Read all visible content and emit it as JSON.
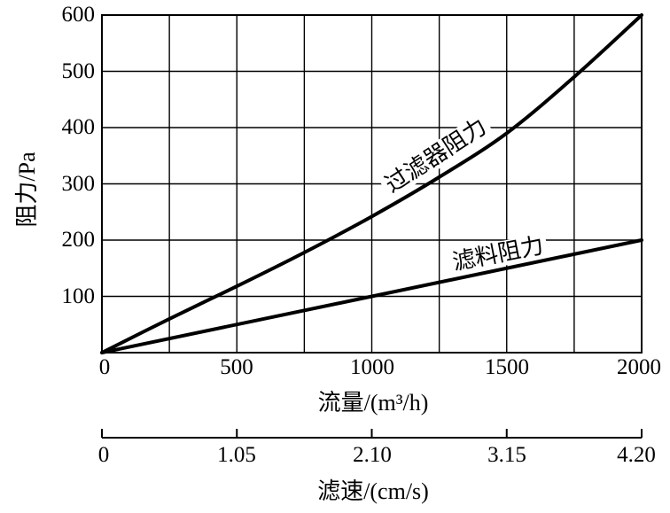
{
  "figure": {
    "background": "#ffffff",
    "line_color": "#000000"
  },
  "y_axis": {
    "title": "阻力/Pa",
    "ticks": [
      "600",
      "500",
      "400",
      "300",
      "200",
      "100"
    ]
  },
  "x_axis": {
    "title": "流量/(m³/h)",
    "ticks": [
      "0",
      "500",
      "1000",
      "1500",
      "2000"
    ]
  },
  "x_axis2": {
    "title": "滤速/(cm/s)",
    "ticks": [
      "0",
      "1.05",
      "2.10",
      "3.15",
      "4.20"
    ]
  },
  "curve_labels": {
    "filter": "过滤器阻力",
    "media": "滤料阻力"
  },
  "chart_data": {
    "type": "line",
    "title": "",
    "xlabel": "流量/(m³/h)",
    "xlabel_secondary": "滤速/(cm/s)",
    "ylabel": "阻力/Pa",
    "xlim": [
      0,
      2000
    ],
    "ylim": [
      0,
      600
    ],
    "x2lim": [
      0,
      4.2
    ],
    "grid": true,
    "x_grid_step": 250,
    "y_grid_step": 100,
    "x2_tick_values": [
      0,
      1.05,
      2.1,
      3.15,
      4.2
    ],
    "series": [
      {
        "name": "过滤器阻力",
        "style": "curved",
        "x": [
          0,
          250,
          500,
          750,
          1000,
          1250,
          1500,
          1750,
          2000
        ],
        "y": [
          0,
          60,
          118,
          178,
          242,
          312,
          390,
          490,
          600
        ]
      },
      {
        "name": "滤料阻力",
        "style": "straight",
        "x": [
          0,
          2000
        ],
        "y": [
          0,
          200
        ]
      }
    ]
  }
}
